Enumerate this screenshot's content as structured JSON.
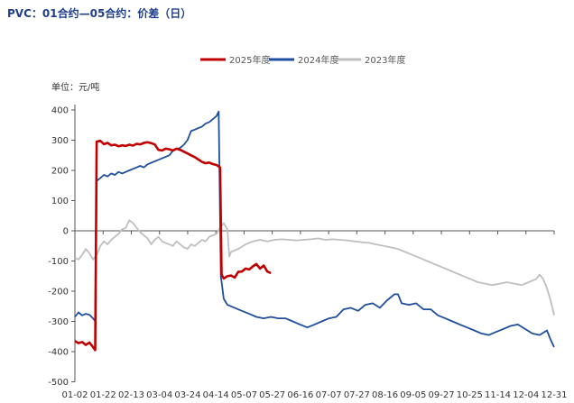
{
  "page": {
    "title": "PVC：01合约—05合约：价差（日）"
  },
  "chart_data": {
    "type": "line",
    "unit_label": "单位：元/吨",
    "ylim": [
      -400,
      400
    ],
    "y_ticks": [
      "400",
      "300",
      "200",
      "100",
      "0",
      "-100",
      "-200",
      "-300",
      "-400",
      "-500"
    ],
    "x_ticks": [
      "01-02",
      "01-22",
      "02-13",
      "03-04",
      "03-24",
      "04-14",
      "05-07",
      "05-27",
      "06-16",
      "07-07",
      "07-27",
      "08-16",
      "09-05",
      "09-27",
      "10-25",
      "11-14",
      "12-04",
      "12-31"
    ],
    "legend_position": "top",
    "grid": false,
    "series": [
      {
        "name": "2025年度",
        "color": "#c00000",
        "values": [
          [
            0,
            -365
          ],
          [
            1,
            -372
          ],
          [
            2,
            -368
          ],
          [
            3,
            -378
          ],
          [
            4,
            -370
          ],
          [
            5,
            -385
          ],
          [
            5.6,
            -395
          ],
          [
            6,
            295
          ],
          [
            7,
            298
          ],
          [
            8,
            287
          ],
          [
            9,
            291
          ],
          [
            10,
            283
          ],
          [
            11,
            285
          ],
          [
            12,
            280
          ],
          [
            13,
            283
          ],
          [
            14,
            281
          ],
          [
            15,
            285
          ],
          [
            16,
            282
          ],
          [
            17,
            288
          ],
          [
            18,
            286
          ],
          [
            19,
            291
          ],
          [
            20,
            293
          ],
          [
            21,
            290
          ],
          [
            22,
            286
          ],
          [
            23,
            268
          ],
          [
            24,
            266
          ],
          [
            25,
            272
          ],
          [
            26,
            270
          ],
          [
            27,
            266
          ],
          [
            28,
            272
          ],
          [
            29,
            268
          ],
          [
            30,
            262
          ],
          [
            31,
            256
          ],
          [
            32,
            250
          ],
          [
            33,
            244
          ],
          [
            34,
            236
          ],
          [
            35,
            228
          ],
          [
            36,
            224
          ],
          [
            37,
            226
          ],
          [
            38,
            221
          ],
          [
            39,
            218
          ],
          [
            40,
            210
          ],
          [
            40.4,
            -145
          ],
          [
            41,
            -158
          ],
          [
            42,
            -150
          ],
          [
            43,
            -148
          ],
          [
            44,
            -155
          ],
          [
            45,
            -136
          ],
          [
            46,
            -135
          ],
          [
            47,
            -125
          ],
          [
            48,
            -128
          ],
          [
            49,
            -118
          ],
          [
            50,
            -110
          ],
          [
            51,
            -125
          ],
          [
            52,
            -115
          ],
          [
            53,
            -135
          ],
          [
            54,
            -140
          ]
        ]
      },
      {
        "name": "2024年度",
        "color": "#1f4e9c",
        "values": [
          [
            0,
            -285
          ],
          [
            1,
            -270
          ],
          [
            2,
            -280
          ],
          [
            3,
            -275
          ],
          [
            4,
            -278
          ],
          [
            5,
            -290
          ],
          [
            5.6,
            -300
          ],
          [
            6,
            165
          ],
          [
            7,
            175
          ],
          [
            8,
            185
          ],
          [
            9,
            180
          ],
          [
            10,
            190
          ],
          [
            11,
            185
          ],
          [
            12,
            195
          ],
          [
            13,
            190
          ],
          [
            14,
            195
          ],
          [
            15,
            200
          ],
          [
            16,
            205
          ],
          [
            17,
            210
          ],
          [
            18,
            215
          ],
          [
            19,
            210
          ],
          [
            20,
            220
          ],
          [
            21,
            225
          ],
          [
            22,
            230
          ],
          [
            23,
            235
          ],
          [
            24,
            240
          ],
          [
            25,
            245
          ],
          [
            26,
            250
          ],
          [
            27,
            265
          ],
          [
            28,
            270
          ],
          [
            29,
            275
          ],
          [
            30,
            285
          ],
          [
            31,
            300
          ],
          [
            32,
            330
          ],
          [
            33,
            335
          ],
          [
            34,
            340
          ],
          [
            35,
            345
          ],
          [
            36,
            355
          ],
          [
            37,
            360
          ],
          [
            38,
            370
          ],
          [
            39,
            380
          ],
          [
            39.6,
            395
          ],
          [
            40.2,
            -150
          ],
          [
            41,
            -225
          ],
          [
            42,
            -245
          ],
          [
            44,
            -255
          ],
          [
            46,
            -265
          ],
          [
            48,
            -275
          ],
          [
            50,
            -285
          ],
          [
            52,
            -290
          ],
          [
            54,
            -285
          ],
          [
            56,
            -290
          ],
          [
            58,
            -290
          ],
          [
            60,
            -300
          ],
          [
            62,
            -310
          ],
          [
            64,
            -320
          ],
          [
            66,
            -310
          ],
          [
            68,
            -300
          ],
          [
            70,
            -290
          ],
          [
            72,
            -285
          ],
          [
            74,
            -260
          ],
          [
            76,
            -255
          ],
          [
            78,
            -265
          ],
          [
            80,
            -245
          ],
          [
            82,
            -240
          ],
          [
            84,
            -255
          ],
          [
            86,
            -230
          ],
          [
            88,
            -210
          ],
          [
            89,
            -210
          ],
          [
            90,
            -240
          ],
          [
            92,
            -245
          ],
          [
            94,
            -240
          ],
          [
            96,
            -260
          ],
          [
            98,
            -260
          ],
          [
            100,
            -280
          ],
          [
            102,
            -290
          ],
          [
            104,
            -300
          ],
          [
            106,
            -310
          ],
          [
            108,
            -320
          ],
          [
            110,
            -330
          ],
          [
            112,
            -340
          ],
          [
            114,
            -345
          ],
          [
            116,
            -335
          ],
          [
            118,
            -325
          ],
          [
            120,
            -315
          ],
          [
            122,
            -310
          ],
          [
            124,
            -325
          ],
          [
            126,
            -340
          ],
          [
            128,
            -345
          ],
          [
            130,
            -330
          ],
          [
            131,
            -360
          ],
          [
            132,
            -385
          ]
        ]
      },
      {
        "name": "2023年度",
        "color": "#bfbfbf",
        "values": [
          [
            0,
            -90
          ],
          [
            1,
            -95
          ],
          [
            2,
            -80
          ],
          [
            3,
            -60
          ],
          [
            4,
            -75
          ],
          [
            5,
            -95
          ],
          [
            6,
            -80
          ],
          [
            7,
            -50
          ],
          [
            8,
            -35
          ],
          [
            9,
            -45
          ],
          [
            10,
            -30
          ],
          [
            11,
            -20
          ],
          [
            12,
            -10
          ],
          [
            13,
            5
          ],
          [
            14,
            10
          ],
          [
            15,
            35
          ],
          [
            16,
            25
          ],
          [
            17,
            10
          ],
          [
            18,
            -5
          ],
          [
            19,
            -15
          ],
          [
            20,
            -25
          ],
          [
            21,
            -45
          ],
          [
            22,
            -30
          ],
          [
            23,
            -20
          ],
          [
            24,
            -35
          ],
          [
            25,
            -40
          ],
          [
            26,
            -45
          ],
          [
            27,
            -50
          ],
          [
            28,
            -35
          ],
          [
            29,
            -45
          ],
          [
            30,
            -55
          ],
          [
            31,
            -60
          ],
          [
            32,
            -45
          ],
          [
            33,
            -50
          ],
          [
            34,
            -40
          ],
          [
            35,
            -30
          ],
          [
            36,
            -35
          ],
          [
            37,
            -20
          ],
          [
            38,
            -15
          ],
          [
            39,
            -10
          ],
          [
            40,
            10
          ],
          [
            41,
            25
          ],
          [
            42,
            5
          ],
          [
            42.5,
            -85
          ],
          [
            43,
            -70
          ],
          [
            45,
            -60
          ],
          [
            47,
            -45
          ],
          [
            49,
            -35
          ],
          [
            51,
            -30
          ],
          [
            53,
            -35
          ],
          [
            55,
            -30
          ],
          [
            57,
            -28
          ],
          [
            59,
            -30
          ],
          [
            61,
            -32
          ],
          [
            63,
            -30
          ],
          [
            65,
            -28
          ],
          [
            67,
            -25
          ],
          [
            69,
            -30
          ],
          [
            71,
            -28
          ],
          [
            73,
            -30
          ],
          [
            75,
            -32
          ],
          [
            77,
            -35
          ],
          [
            79,
            -38
          ],
          [
            81,
            -40
          ],
          [
            83,
            -45
          ],
          [
            85,
            -50
          ],
          [
            87,
            -55
          ],
          [
            89,
            -60
          ],
          [
            91,
            -70
          ],
          [
            93,
            -80
          ],
          [
            95,
            -90
          ],
          [
            97,
            -100
          ],
          [
            99,
            -110
          ],
          [
            101,
            -120
          ],
          [
            103,
            -130
          ],
          [
            105,
            -140
          ],
          [
            107,
            -150
          ],
          [
            109,
            -160
          ],
          [
            111,
            -170
          ],
          [
            113,
            -175
          ],
          [
            115,
            -180
          ],
          [
            117,
            -175
          ],
          [
            119,
            -170
          ],
          [
            121,
            -175
          ],
          [
            123,
            -180
          ],
          [
            125,
            -170
          ],
          [
            127,
            -160
          ],
          [
            128,
            -145
          ],
          [
            129,
            -160
          ],
          [
            130,
            -190
          ],
          [
            131,
            -230
          ],
          [
            132,
            -280
          ]
        ]
      }
    ]
  }
}
